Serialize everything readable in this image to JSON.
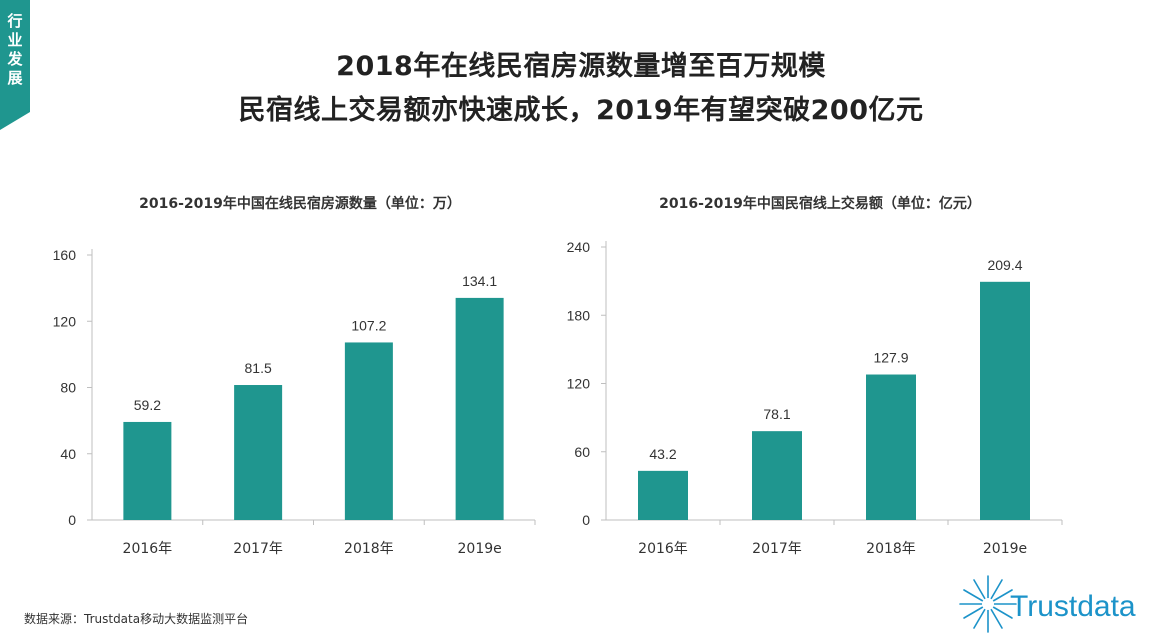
{
  "tag": {
    "text": "行业发展"
  },
  "headline": {
    "line1": "2018年在线民宿房源数量增至百万规模",
    "line2": "民宿线上交易额亦快速成长，2019年有望突破200亿元"
  },
  "chart_data": [
    {
      "type": "bar",
      "title": "2016-2019年中国在线民宿房源数量（单位：万）",
      "categories": [
        "2016年",
        "2017年",
        "2018年",
        "2019e"
      ],
      "values": [
        59.2,
        81.5,
        107.2,
        134.1
      ],
      "value_labels": [
        "59.2",
        "81.5",
        "107.2",
        "134.1"
      ],
      "yticks": [
        0,
        40,
        80,
        120,
        160
      ],
      "ylim": [
        0,
        160
      ],
      "grid": false,
      "bar_color": "#1f968f"
    },
    {
      "type": "bar",
      "title": "2016-2019年中国民宿线上交易额（单位：亿元）",
      "categories": [
        "2016年",
        "2017年",
        "2018年",
        "2019e"
      ],
      "values": [
        43.2,
        78.1,
        127.9,
        209.4
      ],
      "value_labels": [
        "43.2",
        "78.1",
        "127.9",
        "209.4"
      ],
      "yticks": [
        0,
        60,
        120,
        180,
        240
      ],
      "ylim": [
        0,
        240
      ],
      "grid": false,
      "bar_color": "#1f968f"
    }
  ],
  "footer": {
    "source": "数据来源：Trustdata移动大数据监测平台",
    "logo_text": "Trustdata"
  },
  "colors": {
    "accent": "#1f968f",
    "tag": "#1f968f",
    "logo": "#1c93c9"
  }
}
